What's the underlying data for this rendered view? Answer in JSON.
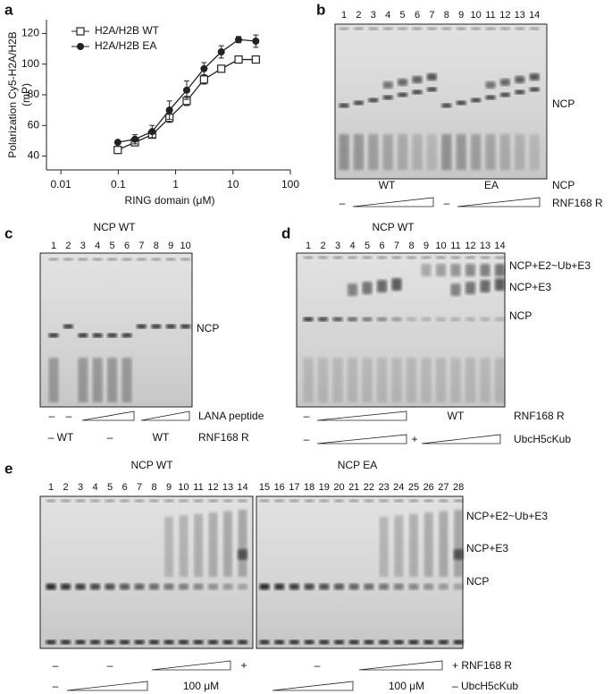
{
  "chart_data": {
    "type": "line",
    "panel_label": "a",
    "ylabel": [
      "Polarization Cy5-H2A/H2B",
      "(mP)"
    ],
    "xlabel": "RING domain (μM)",
    "x": [
      0.098,
      0.195,
      0.39,
      0.78,
      1.56,
      3.125,
      6.25,
      12.5,
      25
    ],
    "xlog": true,
    "xlim": [
      0.0056,
      100
    ],
    "xticks": [
      0.01,
      0.1,
      1,
      10,
      100
    ],
    "ylim": [
      31,
      129
    ],
    "yticks": [
      40,
      60,
      80,
      100,
      120
    ],
    "legend": "top-left",
    "series": [
      {
        "name": "H2A/H2B WT",
        "color": "#222222",
        "marker": "square-open",
        "values": [
          44,
          49,
          54,
          65,
          76,
          90,
          97,
          103,
          103
        ],
        "errors": [
          1.5,
          2,
          2,
          3,
          3,
          3,
          2,
          2,
          2
        ]
      },
      {
        "name": "H2A/H2B EA",
        "color": "#222222",
        "marker": "circle",
        "values": [
          49,
          51,
          56,
          70,
          83,
          97,
          108,
          116,
          115
        ],
        "errors": [
          1,
          3,
          4,
          6,
          6,
          4,
          4,
          2,
          4
        ]
      }
    ]
  },
  "panel_b": {
    "label": "b",
    "lanes": [
      "1",
      "2",
      "3",
      "4",
      "5",
      "6",
      "7",
      "8",
      "9",
      "10",
      "11",
      "12",
      "13",
      "14"
    ],
    "band_label": "NCP",
    "group_labels": [
      "WT",
      "EA"
    ],
    "substrate": "NCP",
    "dashes": [
      "–",
      "–"
    ],
    "titrant": "RNF168 R"
  },
  "panel_c": {
    "label": "c",
    "title": "NCP WT",
    "lanes": [
      "1",
      "2",
      "3",
      "4",
      "5",
      "6",
      "7",
      "8",
      "9",
      "10"
    ],
    "band_label": "NCP",
    "row1": {
      "marks": [
        "–",
        "–"
      ],
      "name": "LANA peptide"
    },
    "row2": {
      "marks": [
        "– WT",
        "–",
        "WT"
      ],
      "name": "RNF168 R"
    }
  },
  "panel_d": {
    "label": "d",
    "title": "NCP WT",
    "lanes": [
      "1",
      "2",
      "3",
      "4",
      "5",
      "6",
      "7",
      "8",
      "9",
      "10",
      "11",
      "12",
      "13",
      "14"
    ],
    "band_labels": [
      "NCP+E2~Ub+E3",
      "NCP+E3",
      "NCP"
    ],
    "row1": {
      "marks": [
        "–",
        "–",
        "WT"
      ],
      "name": "RNF168 R"
    },
    "row2": {
      "marks": [
        "–",
        "+"
      ],
      "name": "UbcH5cKub"
    }
  },
  "panel_e": {
    "label": "e",
    "titles": [
      "NCP WT",
      "NCP EA"
    ],
    "lanes": [
      "1",
      "2",
      "3",
      "4",
      "5",
      "6",
      "7",
      "8",
      "9",
      "10",
      "11",
      "12",
      "13",
      "14",
      "15",
      "16",
      "17",
      "18",
      "19",
      "20",
      "21",
      "22",
      "23",
      "24",
      "25",
      "26",
      "27",
      "28"
    ],
    "band_labels": [
      "NCP+E2~Ub+E3",
      "NCP+E3",
      "NCP"
    ],
    "row1": {
      "marks": [
        "–",
        "–",
        "+",
        "–"
      ],
      "name": "+ RNF168 R"
    },
    "row2": {
      "marks": [
        "–",
        "100 μM",
        "100 μM"
      ],
      "name": "– UbcH5cKub"
    }
  }
}
